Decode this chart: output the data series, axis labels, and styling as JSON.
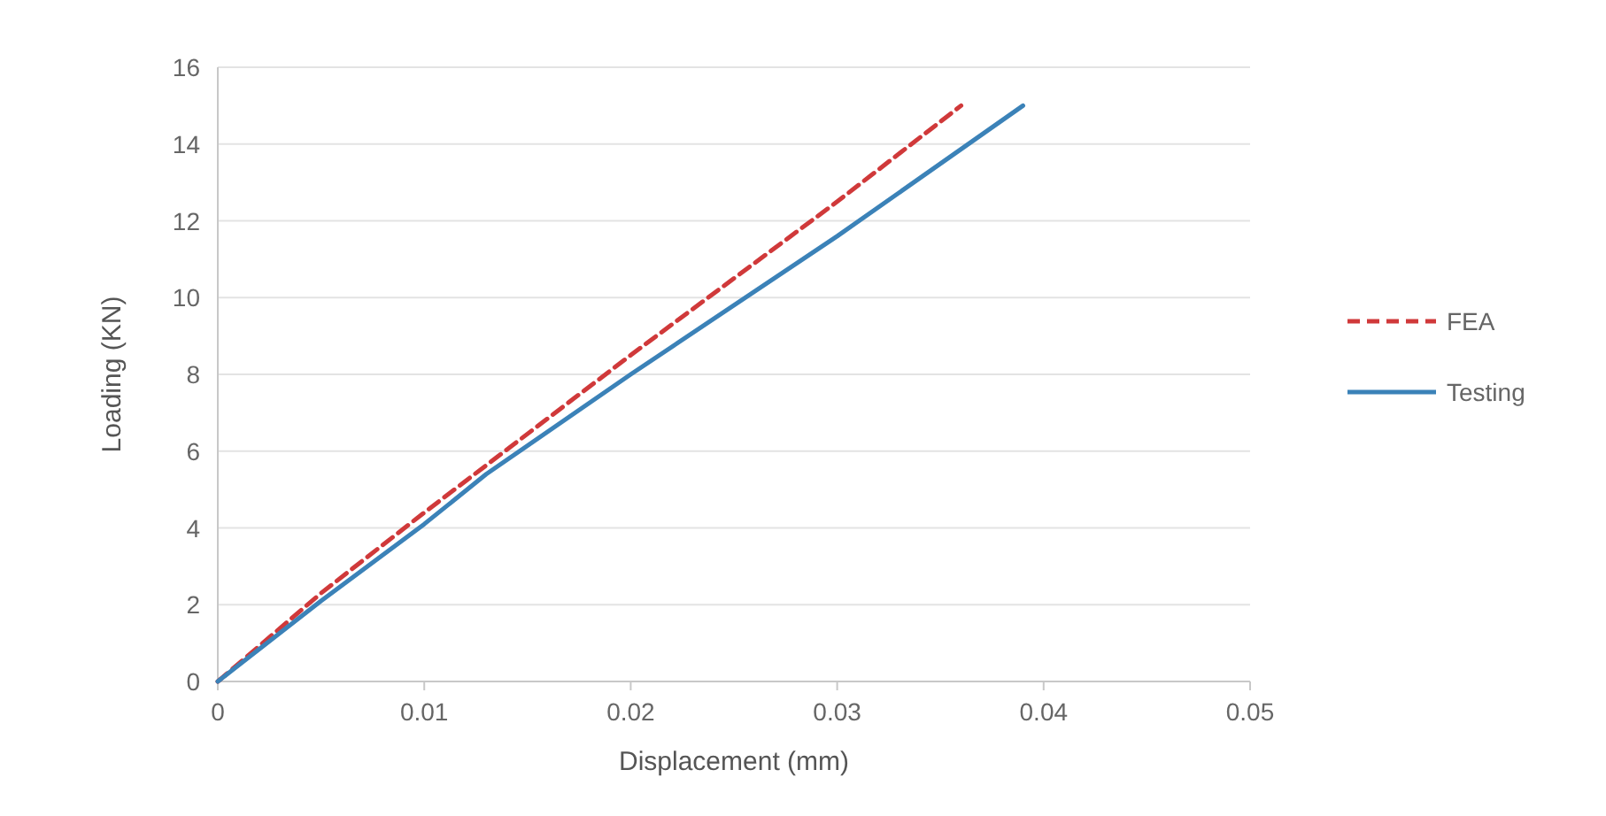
{
  "chart_data": {
    "type": "line",
    "xlabel": "Displacement (mm)",
    "ylabel": "Loading (KN)",
    "xlim": [
      0,
      0.05
    ],
    "xticks": [
      0,
      0.01,
      0.02,
      0.03,
      0.04,
      0.05
    ],
    "ylim": [
      0,
      16
    ],
    "yticks": [
      0,
      2,
      4,
      6,
      8,
      10,
      12,
      14,
      16
    ],
    "grid": "y",
    "legend": "right",
    "marker": "none",
    "series": [
      {
        "name": "FEA",
        "color": "#d0393a",
        "line_style": "dashed",
        "x": [
          0,
          0.005,
          0.01,
          0.02,
          0.03,
          0.036
        ],
        "values": [
          0,
          2.3,
          4.4,
          8.5,
          12.5,
          15
        ]
      },
      {
        "name": "Testing",
        "color": "#3b82b8",
        "line_style": "solid",
        "x": [
          0,
          0.005,
          0.01,
          0.013,
          0.02,
          0.03,
          0.039
        ],
        "values": [
          0,
          2.1,
          4.1,
          5.4,
          8.0,
          11.6,
          15
        ]
      }
    ]
  }
}
